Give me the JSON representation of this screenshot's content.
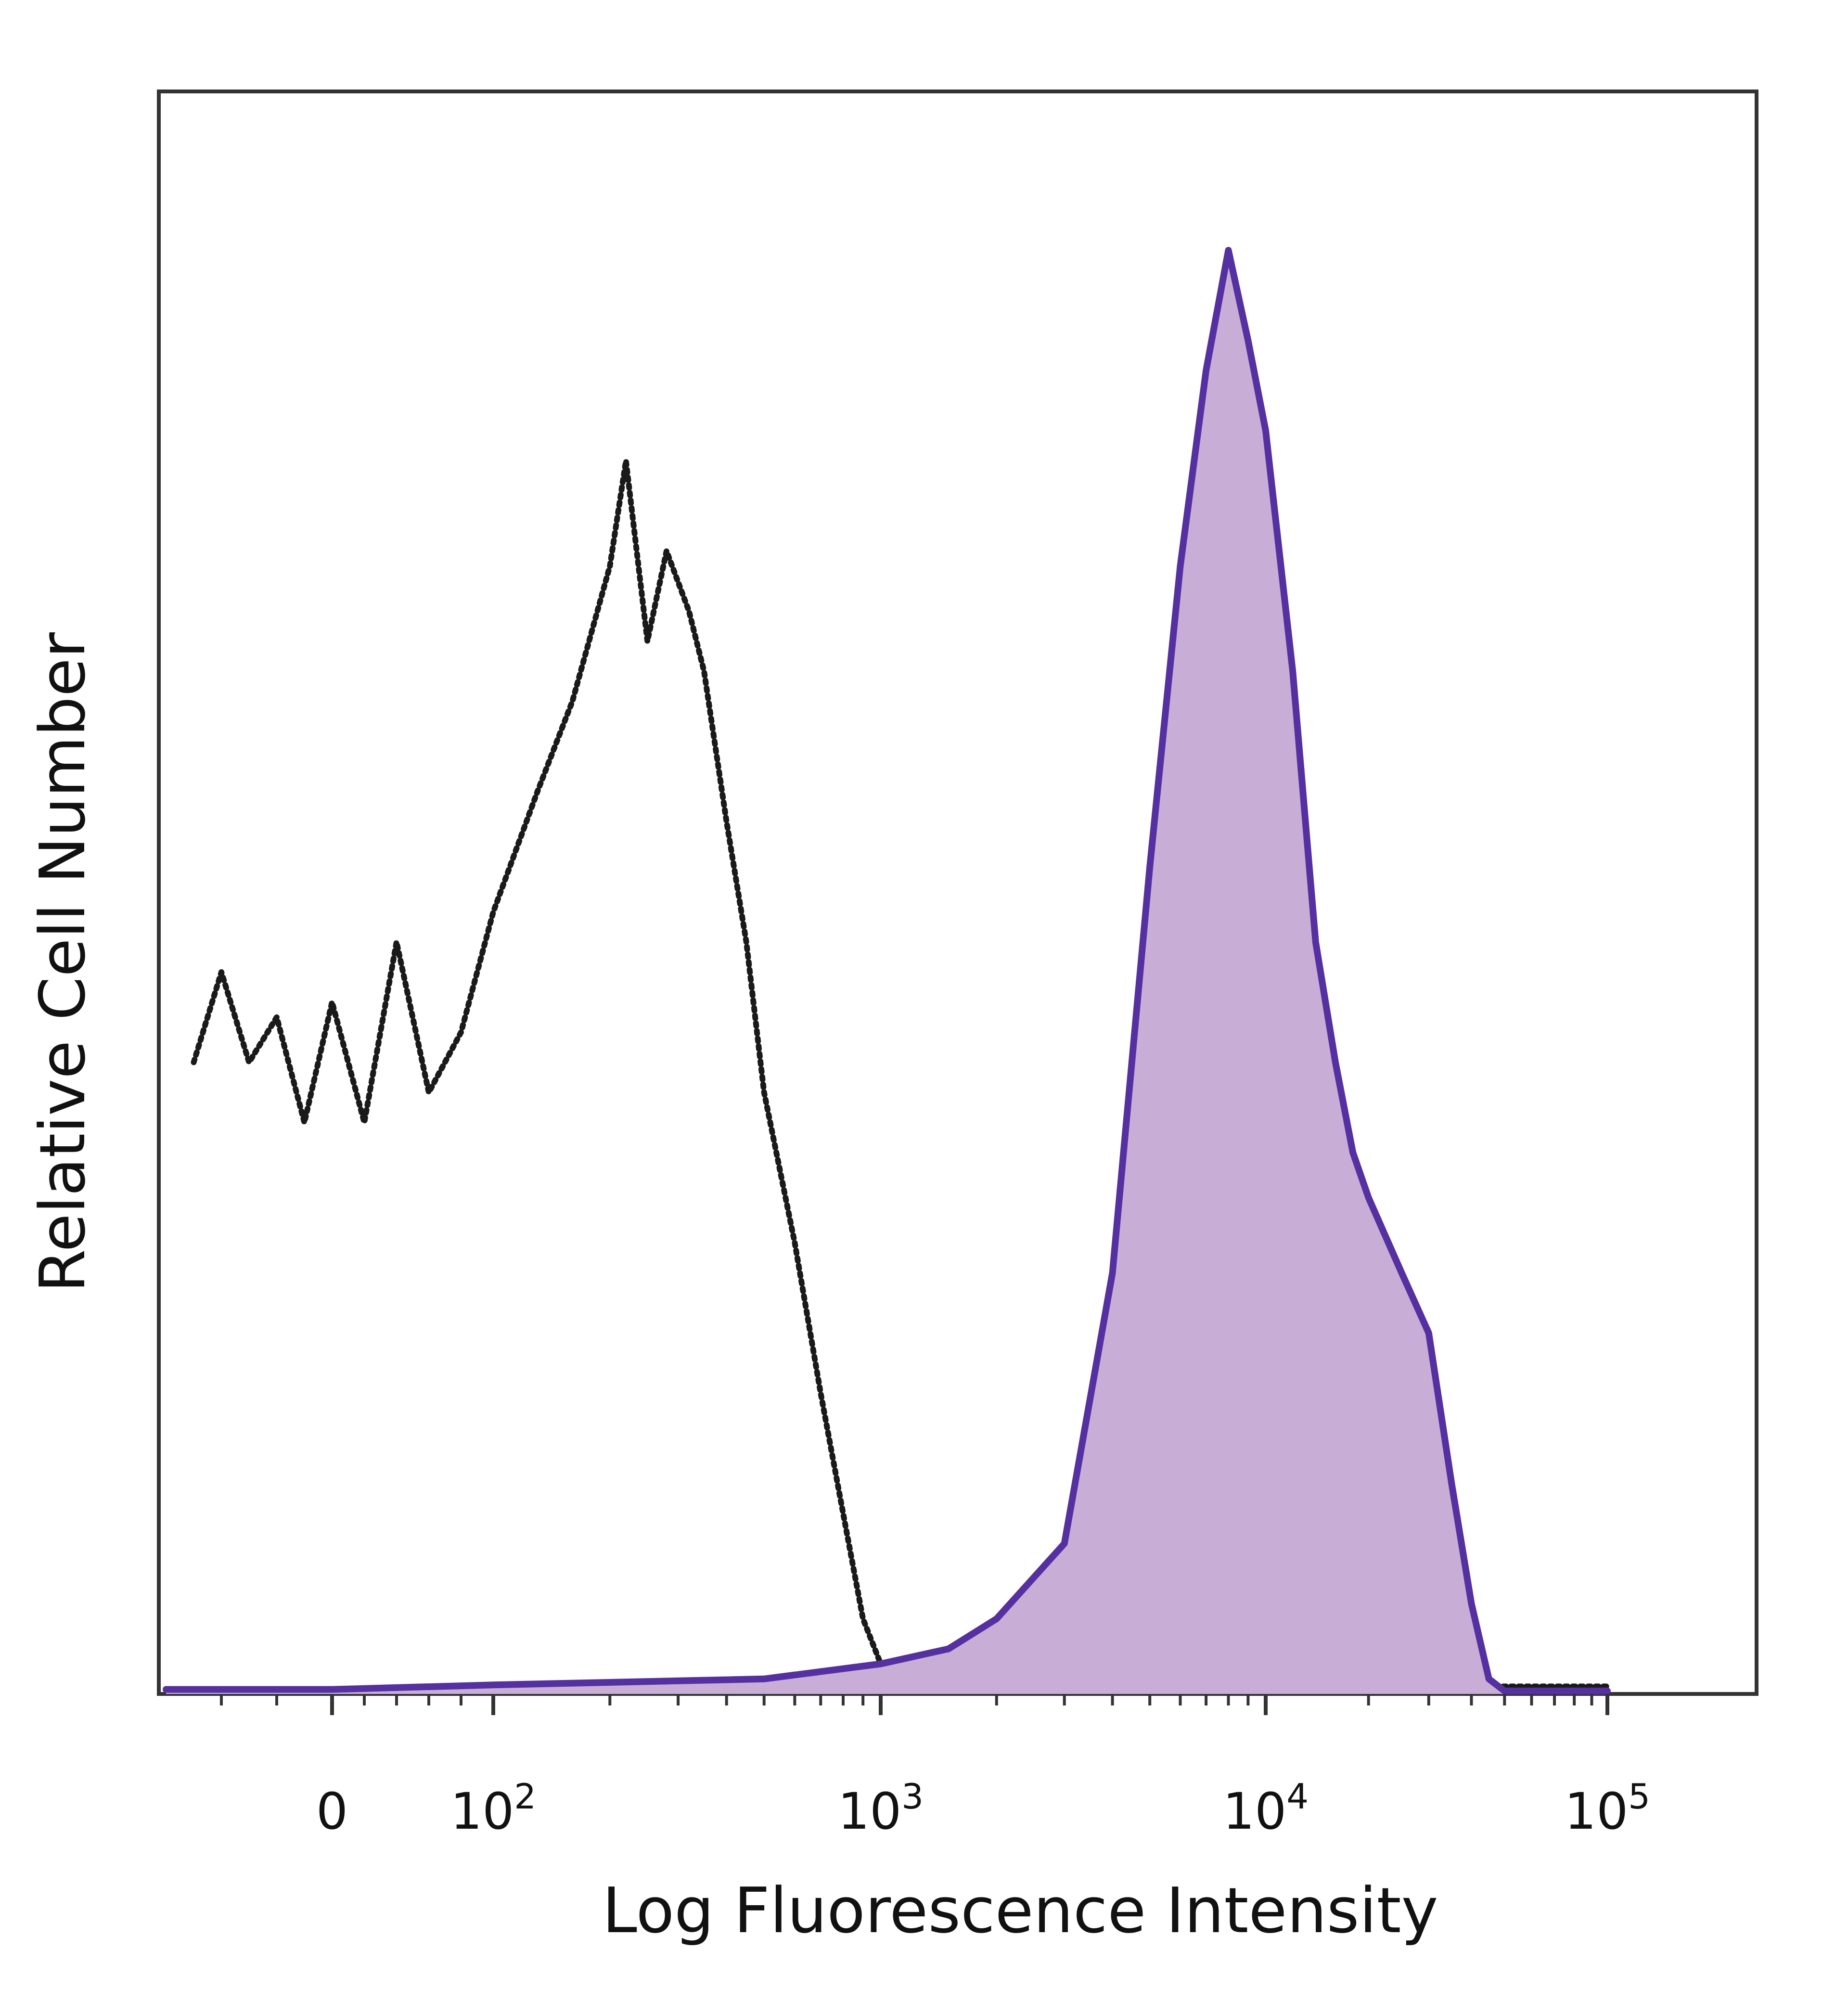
{
  "chart_data": {
    "type": "area",
    "title": "",
    "xlabel": "Log Fluorescence Intensity",
    "ylabel": "Relative Cell Number",
    "xscale": "biexponential",
    "xlim": [
      -300,
      200000
    ],
    "ylim": [
      0,
      100
    ],
    "grid": false,
    "legend": "none",
    "x_ticks": [
      {
        "value": 0,
        "label": "0"
      },
      {
        "value": 100,
        "base": "10",
        "exponent": "2"
      },
      {
        "value": 1000,
        "base": "10",
        "exponent": "3"
      },
      {
        "value": 10000,
        "base": "10",
        "exponent": "4"
      },
      {
        "value": 100000,
        "base": "10",
        "exponent": "5"
      }
    ],
    "series": [
      {
        "style": "dotted-outline",
        "color": "#1a1a1a",
        "points": [
          [
            -250,
            42
          ],
          [
            -200,
            48
          ],
          [
            -150,
            42
          ],
          [
            -100,
            45
          ],
          [
            -50,
            38
          ],
          [
            0,
            46
          ],
          [
            20,
            38
          ],
          [
            40,
            50
          ],
          [
            60,
            40
          ],
          [
            80,
            44
          ],
          [
            100,
            52
          ],
          [
            130,
            60
          ],
          [
            160,
            66
          ],
          [
            200,
            75
          ],
          [
            220,
            82
          ],
          [
            250,
            70
          ],
          [
            280,
            76
          ],
          [
            320,
            72
          ],
          [
            350,
            68
          ],
          [
            400,
            58
          ],
          [
            450,
            50
          ],
          [
            500,
            40
          ],
          [
            600,
            30
          ],
          [
            700,
            20
          ],
          [
            800,
            12
          ],
          [
            900,
            5
          ],
          [
            1000,
            2
          ],
          [
            1500,
            1
          ],
          [
            2000,
            0.8
          ],
          [
            10000,
            0.5
          ],
          [
            100000,
            0.5
          ]
        ]
      },
      {
        "style": "filled",
        "color": "#5530a0",
        "fill": "#c8aed6",
        "points": [
          [
            -300,
            0.3
          ],
          [
            0,
            0.3
          ],
          [
            100,
            0.6
          ],
          [
            500,
            1
          ],
          [
            1000,
            2
          ],
          [
            1500,
            3
          ],
          [
            2000,
            5
          ],
          [
            3000,
            10
          ],
          [
            4000,
            28
          ],
          [
            5000,
            55
          ],
          [
            6000,
            75
          ],
          [
            7000,
            88
          ],
          [
            8000,
            96
          ],
          [
            9000,
            90
          ],
          [
            10000,
            84
          ],
          [
            12000,
            68
          ],
          [
            14000,
            50
          ],
          [
            16000,
            42
          ],
          [
            18000,
            36
          ],
          [
            20000,
            33
          ],
          [
            25000,
            28
          ],
          [
            30000,
            24
          ],
          [
            35000,
            14
          ],
          [
            40000,
            6
          ],
          [
            45000,
            1
          ],
          [
            50000,
            0.2
          ],
          [
            100000,
            0.2
          ]
        ]
      }
    ]
  }
}
